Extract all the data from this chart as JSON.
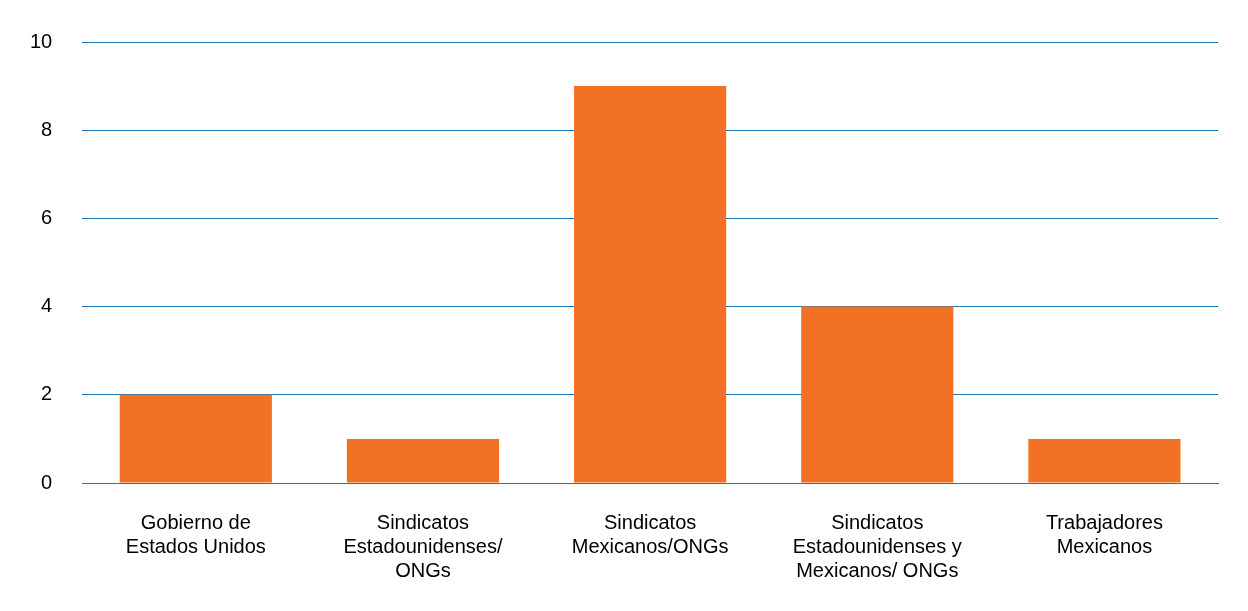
{
  "chart_data": {
    "type": "bar",
    "categories": [
      "Gobierno de Estados Unidos",
      "Sindicatos Estadounidenses/ ONGs",
      "Sindicatos Mexicanos/ONGs",
      "Sindicatos Estadounidenses y Mexicanos/ ONGs",
      "Trabajadores Mexicanos"
    ],
    "values": [
      2,
      1,
      9,
      4,
      1
    ],
    "color": "#f37124",
    "ylim": [
      0,
      10
    ],
    "yticks": [
      0,
      2,
      4,
      6,
      8,
      10
    ],
    "grid": "y",
    "legend": false
  }
}
